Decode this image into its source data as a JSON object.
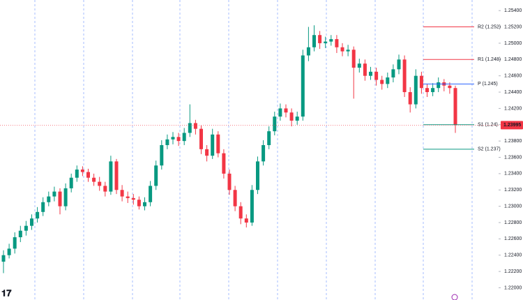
{
  "chart_data": {
    "type": "candlestick",
    "up_color": "#089981",
    "down_color": "#f23645",
    "ylim": [
      1.2185,
      1.2553
    ],
    "yticks": [
      {
        "value": 1.22,
        "label": "1.22000"
      },
      {
        "value": 1.222,
        "label": "1.22200"
      },
      {
        "value": 1.224,
        "label": "1.22400"
      },
      {
        "value": 1.226,
        "label": "1.22600"
      },
      {
        "value": 1.228,
        "label": "1.22800"
      },
      {
        "value": 1.23,
        "label": "1.23000"
      },
      {
        "value": 1.232,
        "label": "1.23200"
      },
      {
        "value": 1.234,
        "label": "1.23400"
      },
      {
        "value": 1.236,
        "label": "1.23600"
      },
      {
        "value": 1.238,
        "label": "1.23800"
      },
      {
        "value": 1.24,
        "label": "1.24000"
      },
      {
        "value": 1.242,
        "label": "1.24200"
      },
      {
        "value": 1.244,
        "label": "1.24400"
      },
      {
        "value": 1.246,
        "label": "1.24600"
      },
      {
        "value": 1.248,
        "label": "1.24800"
      },
      {
        "value": 1.25,
        "label": "1.25000"
      },
      {
        "value": 1.252,
        "label": "1.25200"
      },
      {
        "value": 1.254,
        "label": "1.25400"
      }
    ],
    "last_price": 1.23995,
    "levels": [
      {
        "label": "R2 (1.252)",
        "value": 1.252,
        "color": "#f23645"
      },
      {
        "label": "R1 (1.248)",
        "value": 1.248,
        "color": "#f23645"
      },
      {
        "label": "P (1.245)",
        "value": 1.245,
        "color": "#2962ff"
      },
      {
        "label": "S1 (1.24)",
        "value": 1.24,
        "color": "#089981"
      },
      {
        "label": "S2 (1.237)",
        "value": 1.237,
        "color": "#089981"
      }
    ],
    "candles": [
      [
        1.2232,
        1.2246,
        1.2218,
        1.224
      ],
      [
        1.224,
        1.2254,
        1.2236,
        1.2248
      ],
      [
        1.2248,
        1.2268,
        1.2242,
        1.2262
      ],
      [
        1.2262,
        1.2276,
        1.2256,
        1.227
      ],
      [
        1.227,
        1.2282,
        1.2264,
        1.2276
      ],
      [
        1.2276,
        1.229,
        1.2271,
        1.2285
      ],
      [
        1.2285,
        1.2299,
        1.228,
        1.2293
      ],
      [
        1.2293,
        1.2311,
        1.2288,
        1.2305
      ],
      [
        1.2305,
        1.2318,
        1.23,
        1.2312
      ],
      [
        1.2312,
        1.2324,
        1.2306,
        1.2318
      ],
      [
        1.2318,
        1.2322,
        1.229,
        1.23
      ],
      [
        1.23,
        1.2328,
        1.2295,
        1.2322
      ],
      [
        1.2322,
        1.234,
        1.2317,
        1.2335
      ],
      [
        1.2335,
        1.235,
        1.233,
        1.2345
      ],
      [
        1.2345,
        1.2349,
        1.2337,
        1.2342
      ],
      [
        1.2342,
        1.2346,
        1.233,
        1.2335
      ],
      [
        1.2335,
        1.234,
        1.2325,
        1.233
      ],
      [
        1.233,
        1.2336,
        1.2319,
        1.2325
      ],
      [
        1.2325,
        1.233,
        1.2312,
        1.2318
      ],
      [
        1.2318,
        1.2362,
        1.2314,
        1.2355
      ],
      [
        1.2355,
        1.2358,
        1.2315,
        1.232
      ],
      [
        1.232,
        1.2326,
        1.2306,
        1.2312
      ],
      [
        1.2312,
        1.2318,
        1.2304,
        1.231
      ],
      [
        1.231,
        1.2315,
        1.2302,
        1.2308
      ],
      [
        1.2308,
        1.2312,
        1.2296,
        1.23
      ],
      [
        1.23,
        1.2311,
        1.2295,
        1.2305
      ],
      [
        1.2305,
        1.2331,
        1.23,
        1.2325
      ],
      [
        1.2325,
        1.2356,
        1.232,
        1.235
      ],
      [
        1.235,
        1.2381,
        1.2345,
        1.2375
      ],
      [
        1.2375,
        1.2388,
        1.237,
        1.2382
      ],
      [
        1.2382,
        1.2391,
        1.2376,
        1.2385
      ],
      [
        1.2385,
        1.239,
        1.2374,
        1.238
      ],
      [
        1.238,
        1.2396,
        1.2375,
        1.239
      ],
      [
        1.239,
        1.2425,
        1.2385,
        1.2402
      ],
      [
        1.2402,
        1.2406,
        1.2388,
        1.2395
      ],
      [
        1.2395,
        1.2399,
        1.2364,
        1.237
      ],
      [
        1.237,
        1.2375,
        1.2355,
        1.2362
      ],
      [
        1.2362,
        1.2395,
        1.2358,
        1.2388
      ],
      [
        1.2388,
        1.2392,
        1.236,
        1.2365
      ],
      [
        1.2365,
        1.237,
        1.2334,
        1.234
      ],
      [
        1.234,
        1.2345,
        1.2314,
        1.232
      ],
      [
        1.232,
        1.2325,
        1.2294,
        1.23
      ],
      [
        1.23,
        1.2305,
        1.2278,
        1.2285
      ],
      [
        1.2285,
        1.229,
        1.2274,
        1.228
      ],
      [
        1.228,
        1.2326,
        1.2276,
        1.232
      ],
      [
        1.232,
        1.2361,
        1.2315,
        1.2355
      ],
      [
        1.2355,
        1.2381,
        1.235,
        1.2375
      ],
      [
        1.2375,
        1.2398,
        1.237,
        1.2392
      ],
      [
        1.2392,
        1.2416,
        1.2387,
        1.241
      ],
      [
        1.241,
        1.2426,
        1.2405,
        1.242
      ],
      [
        1.242,
        1.2425,
        1.2409,
        1.2415
      ],
      [
        1.2415,
        1.242,
        1.2398,
        1.2405
      ],
      [
        1.2405,
        1.2416,
        1.24,
        1.241
      ],
      [
        1.241,
        1.2492,
        1.2405,
        1.2485
      ],
      [
        1.2485,
        1.252,
        1.2478,
        1.2495
      ],
      [
        1.2495,
        1.2522,
        1.249,
        1.251
      ],
      [
        1.251,
        1.2515,
        1.2493,
        1.25
      ],
      [
        1.25,
        1.2508,
        1.2494,
        1.2502
      ],
      [
        1.2502,
        1.251,
        1.2497,
        1.2505
      ],
      [
        1.2505,
        1.251,
        1.2488,
        1.2495
      ],
      [
        1.2495,
        1.25,
        1.2484,
        1.249
      ],
      [
        1.249,
        1.2498,
        1.2484,
        1.2492
      ],
      [
        1.2492,
        1.2496,
        1.2432,
        1.247
      ],
      [
        1.247,
        1.2481,
        1.2464,
        1.2475
      ],
      [
        1.2475,
        1.248,
        1.2454,
        1.246
      ],
      [
        1.246,
        1.2471,
        1.2455,
        1.2465
      ],
      [
        1.2465,
        1.247,
        1.2448,
        1.2455
      ],
      [
        1.2455,
        1.246,
        1.2443,
        1.245
      ],
      [
        1.245,
        1.2464,
        1.2445,
        1.2458
      ],
      [
        1.2458,
        1.2474,
        1.2452,
        1.2468
      ],
      [
        1.2468,
        1.2486,
        1.2462,
        1.248
      ],
      [
        1.248,
        1.2485,
        1.2434,
        1.244
      ],
      [
        1.244,
        1.2446,
        1.2415,
        1.2425
      ],
      [
        1.2425,
        1.2468,
        1.242,
        1.246
      ],
      [
        1.246,
        1.2465,
        1.2438,
        1.2445
      ],
      [
        1.2445,
        1.245,
        1.2434,
        1.244
      ],
      [
        1.244,
        1.2451,
        1.2435,
        1.2445
      ],
      [
        1.2445,
        1.2458,
        1.244,
        1.2452
      ],
      [
        1.2452,
        1.2456,
        1.2441,
        1.2448
      ],
      [
        1.2448,
        1.2452,
        1.2438,
        1.2445
      ],
      [
        1.2445,
        1.2448,
        1.239,
        1.23995
      ]
    ]
  }
}
